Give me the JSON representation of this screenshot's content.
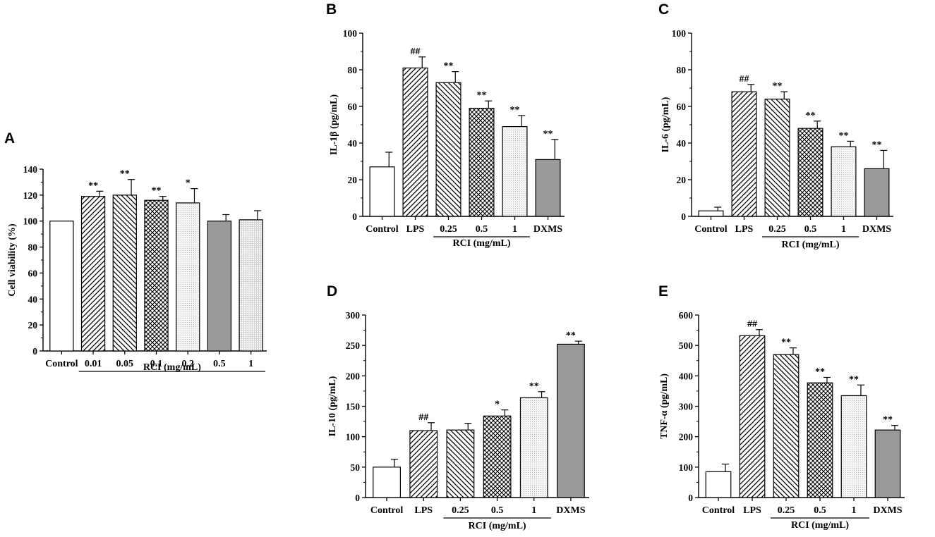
{
  "figure": {
    "background": "#ffffff"
  },
  "chart_data": [
    {
      "panel": "A",
      "type": "bar",
      "ylabel": "Cell viability (%)",
      "ylim": [
        0,
        140
      ],
      "yticks": [
        0,
        20,
        40,
        60,
        80,
        100,
        120,
        140
      ],
      "categories": [
        "Control",
        "0.01",
        "0.05",
        "0.1",
        "0.2",
        "0.5",
        "1"
      ],
      "values": [
        100,
        119,
        120,
        116,
        114,
        100,
        101
      ],
      "errors": [
        0,
        4,
        12,
        3,
        11,
        5,
        7
      ],
      "significance": [
        "",
        "**",
        "**",
        "**",
        "*",
        "",
        ""
      ],
      "patterns": [
        "white",
        "diag-fwd",
        "diag-back",
        "crosshatch",
        "dots",
        "gray",
        "dotgrid"
      ],
      "group_label": "RCI (mg/mL)",
      "group_span": [
        1,
        6
      ]
    },
    {
      "panel": "B",
      "type": "bar",
      "ylabel": "IL-1β (pg/mL)",
      "ylim": [
        0,
        100
      ],
      "yticks": [
        0,
        20,
        40,
        60,
        80,
        100
      ],
      "categories": [
        "Control",
        "LPS",
        "0.25",
        "0.5",
        "1",
        "DXMS"
      ],
      "values": [
        27,
        81,
        73,
        59,
        49,
        31
      ],
      "errors": [
        8,
        6,
        6,
        4,
        6,
        11
      ],
      "significance": [
        "",
        "##",
        "**",
        "**",
        "**",
        "**"
      ],
      "patterns": [
        "white",
        "diag-fwd",
        "diag-back",
        "crosshatch",
        "dots",
        "gray"
      ],
      "group_label": "RCI (mg/mL)",
      "group_span": [
        2,
        4
      ]
    },
    {
      "panel": "C",
      "type": "bar",
      "ylabel": "IL-6 (pg/mL)",
      "ylim": [
        0,
        100
      ],
      "yticks": [
        0,
        20,
        40,
        60,
        80,
        100
      ],
      "categories": [
        "Control",
        "LPS",
        "0.25",
        "0.5",
        "1",
        "DXMS"
      ],
      "values": [
        3,
        68,
        64,
        48,
        38,
        26
      ],
      "errors": [
        2,
        4,
        4,
        4,
        3,
        10
      ],
      "significance": [
        "",
        "##",
        "**",
        "**",
        "**",
        "**"
      ],
      "patterns": [
        "white",
        "diag-fwd",
        "diag-back",
        "crosshatch",
        "dots",
        "gray"
      ],
      "group_label": "RCI (mg/mL)",
      "group_span": [
        2,
        4
      ]
    },
    {
      "panel": "D",
      "type": "bar",
      "ylabel": "IL-10 (pg/mL)",
      "ylim": [
        0,
        300
      ],
      "yticks": [
        0,
        50,
        100,
        150,
        200,
        250,
        300
      ],
      "categories": [
        "Control",
        "LPS",
        "0.25",
        "0.5",
        "1",
        "DXMS"
      ],
      "values": [
        50,
        110,
        111,
        134,
        164,
        252
      ],
      "errors": [
        13,
        13,
        11,
        10,
        10,
        5
      ],
      "significance": [
        "",
        "##",
        "",
        "*",
        "**",
        "**"
      ],
      "patterns": [
        "white",
        "diag-fwd",
        "diag-back",
        "crosshatch",
        "dots",
        "gray"
      ],
      "group_label": "RCI (mg/mL)",
      "group_span": [
        2,
        4
      ]
    },
    {
      "panel": "E",
      "type": "bar",
      "ylabel": "TNF-α (pg/mL)",
      "ylim": [
        0,
        600
      ],
      "yticks": [
        0,
        100,
        200,
        300,
        400,
        500,
        600
      ],
      "categories": [
        "Control",
        "LPS",
        "0.25",
        "0.5",
        "1",
        "DXMS"
      ],
      "values": [
        85,
        532,
        470,
        377,
        335,
        222
      ],
      "errors": [
        25,
        20,
        22,
        18,
        35,
        15
      ],
      "significance": [
        "",
        "##",
        "**",
        "**",
        "**",
        "**"
      ],
      "patterns": [
        "white",
        "diag-fwd",
        "diag-back",
        "crosshatch",
        "dots",
        "gray"
      ],
      "group_label": "RCI (mg/mL)",
      "group_span": [
        2,
        4
      ]
    }
  ]
}
